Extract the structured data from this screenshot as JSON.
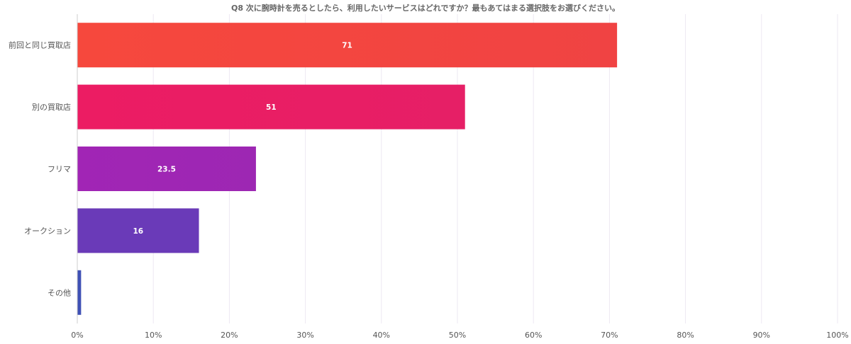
{
  "chart_data": {
    "type": "bar",
    "orientation": "horizontal",
    "title": "Q8 次に腕時計を売るとしたら、利用したいサービスはどれですか？最もあてはまる選択肢をお選びください。",
    "categories": [
      "前回と同じ買取店",
      "別の買取店",
      "フリマ",
      "オークション",
      "その他"
    ],
    "values": [
      71,
      51,
      23.5,
      16,
      0.5
    ],
    "data_labels": [
      "71",
      "51",
      "23.5",
      "16",
      ""
    ],
    "xlim": [
      0,
      100
    ],
    "x_ticks": [
      "0%",
      "10%",
      "20%",
      "30%",
      "40%",
      "50%",
      "60%",
      "70%",
      "80%",
      "90%",
      "100%"
    ],
    "grid": true,
    "colors": [
      [
        "#f6483d",
        "#f04343"
      ],
      [
        "#ec1c63",
        "#e61f66"
      ],
      [
        "#a125b5",
        "#9d27b3"
      ],
      [
        "#6a3ab8",
        "#6a3ab8"
      ],
      [
        "#3f51b5",
        "#3f51b5"
      ]
    ]
  }
}
